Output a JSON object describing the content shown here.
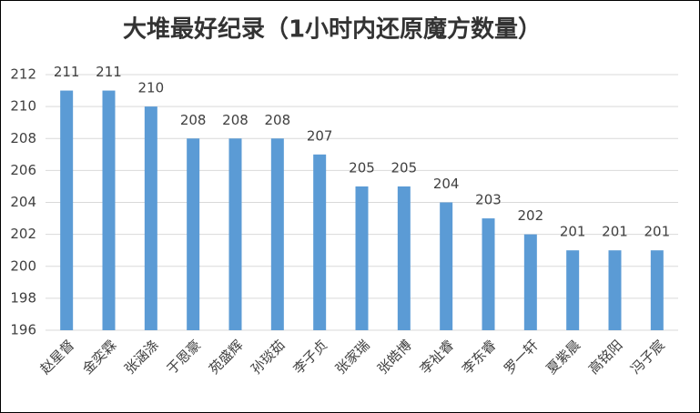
{
  "chart_data": {
    "type": "bar",
    "title": "大堆最好纪录（1小时内还原魔方数量）",
    "categories": [
      "赵星督",
      "金奕霖",
      "张涵涤",
      "于恩豪",
      "苑盛辉",
      "孙琰茹",
      "李子贞",
      "张家瑞",
      "张皓博",
      "李祉睿",
      "李东睿",
      "罗一轩",
      "夏紫晨",
      "高铭阳",
      "冯子宸"
    ],
    "values": [
      211,
      211,
      210,
      208,
      208,
      208,
      207,
      205,
      205,
      204,
      203,
      202,
      201,
      201,
      201
    ],
    "color": "#5b9bd5",
    "ylim": [
      196,
      212
    ],
    "yticks": [
      196,
      198,
      200,
      202,
      204,
      206,
      208,
      210,
      212
    ],
    "grid": true
  }
}
